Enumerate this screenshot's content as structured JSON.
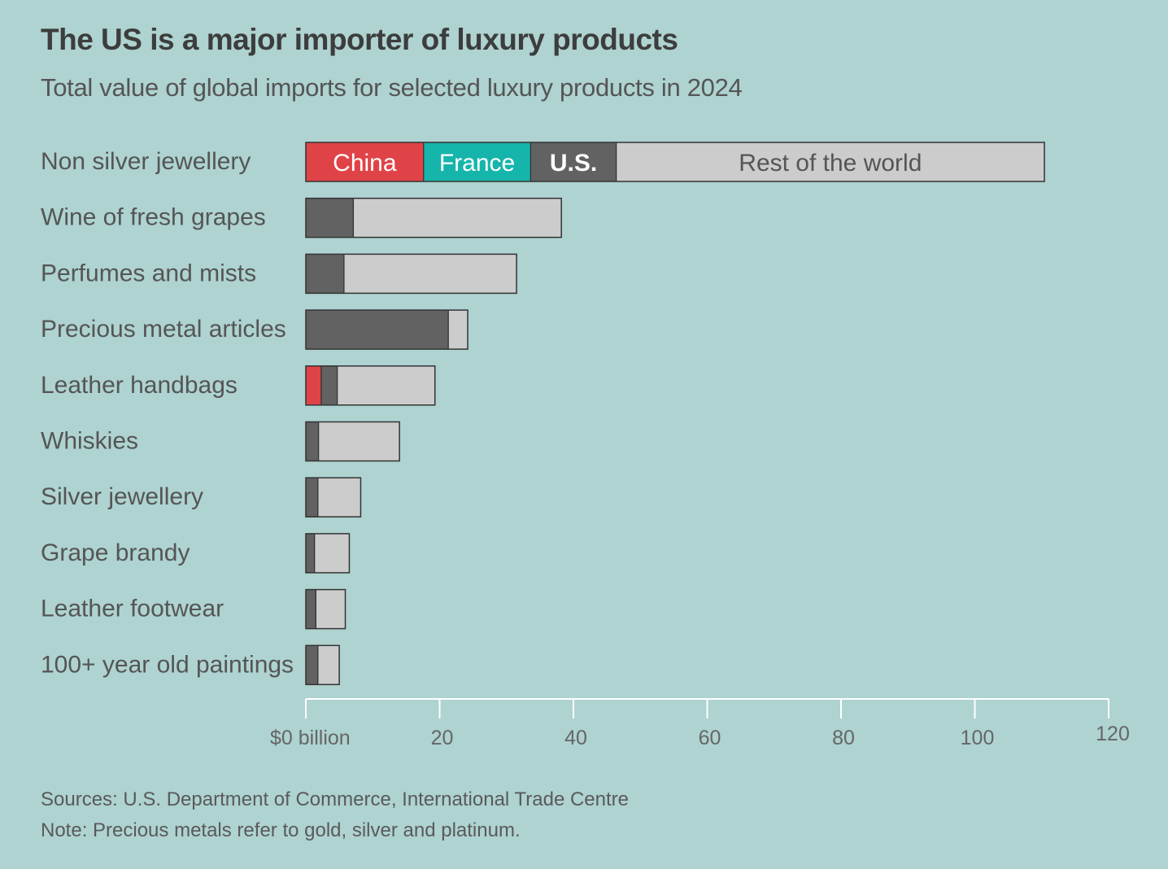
{
  "header": {
    "title": "The US is a major importer of luxury products",
    "subtitle": "Total value of global imports for selected luxury products in 2024"
  },
  "footer": {
    "sources": "Sources: U.S. Department of Commerce, International Trade Centre",
    "note": "Note: Precious metals refer to gold, silver and platinum."
  },
  "colors": {
    "background": "#aed3d1",
    "china": "#e04347",
    "france": "#16b5ab",
    "us": "#626262",
    "rest": "#cccccc",
    "outline": "#333333",
    "axis": "#ffffff",
    "label": "#555555"
  },
  "chart_data": {
    "type": "bar",
    "orientation": "horizontal",
    "stacked": true,
    "title": "The US is a major importer of luxury products",
    "subtitle": "Total value of global imports for selected luxury products in 2024",
    "xlabel": "",
    "ylabel": "",
    "xlim": [
      0,
      120
    ],
    "x_ticks": [
      0,
      20,
      40,
      60,
      80,
      100,
      120
    ],
    "x_tick_labels": [
      "$0 billion",
      "20",
      "40",
      "60",
      "80",
      "100",
      "120"
    ],
    "grid": false,
    "legend": "inline labels on first bar",
    "categories": [
      "Non silver jewellery",
      "Wine of fresh grapes",
      "Perfumes and mists",
      "Precious metal articles",
      "Leather handbags",
      "Whiskies",
      "Silver jewellery",
      "Grape brandy",
      "Leather footwear",
      "100+ year old paintings"
    ],
    "series": [
      {
        "name": "China",
        "color_key": "china",
        "values": [
          17.6,
          0,
          0,
          0,
          2.3,
          0,
          0,
          0,
          0,
          0
        ]
      },
      {
        "name": "France",
        "color_key": "france",
        "values": [
          16.0,
          0,
          0,
          0,
          0,
          0,
          0,
          0,
          0,
          0
        ]
      },
      {
        "name": "U.S.",
        "color_key": "us",
        "values": [
          12.8,
          7.1,
          5.7,
          21.3,
          2.4,
          1.9,
          1.8,
          1.3,
          1.5,
          1.8
        ]
      },
      {
        "name": "Rest of the world",
        "color_key": "rest",
        "values": [
          64.0,
          31.1,
          25.8,
          2.9,
          14.6,
          12.1,
          6.4,
          5.2,
          4.4,
          3.2
        ]
      }
    ]
  }
}
